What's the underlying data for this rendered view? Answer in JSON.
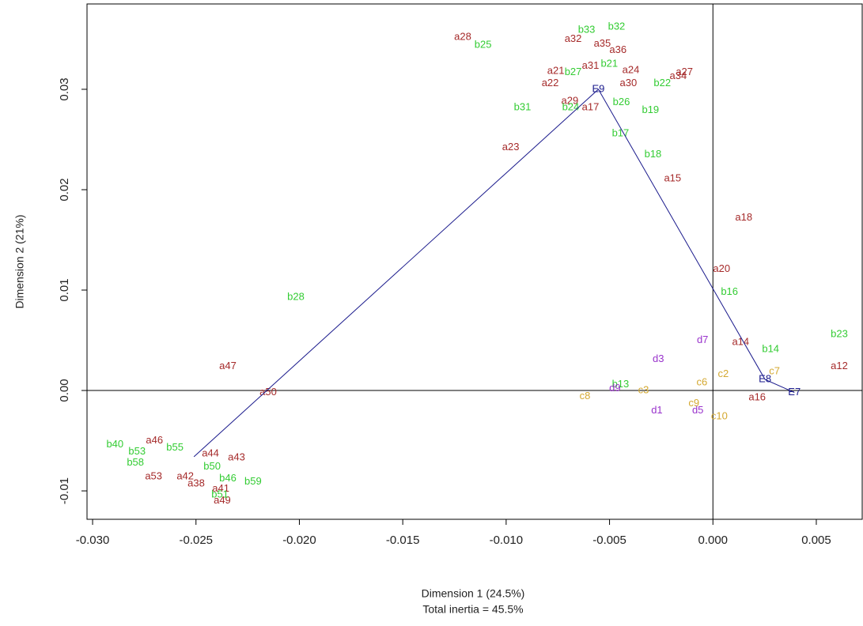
{
  "chart_data": {
    "type": "scatter",
    "xlabel": "Dimension 1 (24.5%)",
    "subtitle": "Total inertia = 45.5%",
    "ylabel": "Dimension 2 (21%)",
    "xlim": [
      -0.03027,
      0.00722
    ],
    "ylim": [
      -0.01283,
      0.0385
    ],
    "xticks": [
      {
        "value": -0.03,
        "label": "-0.030"
      },
      -0.025,
      {
        "value": -0.02,
        "label": "-0.020"
      },
      -0.015,
      {
        "value": -0.01,
        "label": "-0.010"
      },
      -0.005,
      {
        "value": 0,
        "label": "0.000"
      },
      0.005
    ],
    "yticks": [
      -0.01,
      {
        "value": 0,
        "label": "0.00"
      },
      0.01,
      0.02,
      0.03
    ],
    "reference_lines": {
      "x": 0,
      "y": 0
    },
    "series": [
      {
        "color": "#a52a2a",
        "line": false,
        "labels": [
          "a28",
          "a32",
          "a35",
          "a36",
          "a21",
          "a22",
          "a31",
          "a24",
          "a30",
          "a27",
          "a34",
          "a29",
          "a17",
          "a23",
          "a15",
          "a18",
          "a20",
          "a14",
          "a12",
          "a47",
          "a50",
          "a46",
          "a44",
          "a43",
          "a53",
          "a42",
          "a38",
          "a41",
          "a49",
          "a16"
        ],
        "x": [
          -0.0121,
          -0.00676,
          -0.00535,
          -0.00459,
          -0.0076,
          -0.00787,
          -0.00592,
          -0.00397,
          -0.00409,
          -0.00138,
          -0.00168,
          -0.00692,
          -0.00592,
          -0.00978,
          -0.00195,
          0.00149,
          0.00042,
          0.00134,
          0.00611,
          -0.02346,
          -0.02151,
          -0.02701,
          -0.0243,
          -0.02304,
          -0.02705,
          -0.02552,
          -0.02499,
          -0.0238,
          -0.02373,
          0.00214
        ],
        "y": [
          0.0352,
          0.035,
          0.0345,
          0.0339,
          0.0318,
          0.0306,
          0.0323,
          0.0319,
          0.0306,
          0.0317,
          0.0313,
          0.0288,
          0.0282,
          0.0242,
          0.0211,
          0.0172,
          0.0121,
          0.0048,
          0.0024,
          0.0024,
          -0.0002,
          -0.005,
          -0.0063,
          -0.0067,
          -0.0086,
          -0.0086,
          -0.0093,
          -0.0098,
          -0.011,
          -0.0007
        ]
      },
      {
        "color": "#33cc33",
        "line": false,
        "labels": [
          "b33",
          "b32",
          "b25",
          "b21",
          "b27",
          "b22",
          "b31",
          "b24",
          "b26",
          "b19",
          "b17",
          "b18",
          "b28",
          "b16",
          "b23",
          "b14",
          "b13",
          "b40",
          "b53",
          "b55",
          "b58",
          "b50",
          "b46",
          "b59",
          "b51"
        ],
        "x": [
          -0.00611,
          -0.00466,
          -0.01112,
          -0.00501,
          -0.00676,
          -0.00245,
          -0.00921,
          -0.00688,
          -0.00443,
          -0.00302,
          -0.00447,
          -0.0029,
          -0.02017,
          0.0008,
          0.00611,
          0.00279,
          -0.00447,
          -0.02892,
          -0.02785,
          -0.02602,
          -0.02793,
          -0.02422,
          -0.02346,
          -0.02224,
          -0.02384
        ],
        "y": [
          0.0359,
          0.0362,
          0.0344,
          0.0325,
          0.0317,
          0.0306,
          0.0282,
          0.0282,
          0.0287,
          0.0279,
          0.0256,
          0.0235,
          0.0093,
          0.0098,
          0.0056,
          0.0041,
          0.0006,
          -0.0054,
          -0.0061,
          -0.0057,
          -0.0072,
          -0.0076,
          -0.0088,
          -0.0091,
          -0.0104
        ]
      },
      {
        "color": "#d4a830",
        "line": false,
        "labels": [
          "c8",
          "c3",
          "c6",
          "c7",
          "c9",
          "c10",
          "c2"
        ],
        "x": [
          -0.00619,
          -0.00336,
          -0.00053,
          0.00298,
          -0.00092,
          0.00031,
          0.0005
        ],
        "y": [
          -0.0006,
          0.0,
          0.0008,
          0.0019,
          -0.0013,
          -0.0026,
          0.0016
        ]
      },
      {
        "color": "#9933cc",
        "line": false,
        "labels": [
          "d7",
          "d3",
          "d9",
          "d1",
          "d5"
        ],
        "x": [
          -0.0005,
          -0.00264,
          -0.00474,
          -0.00271,
          -0.00073
        ],
        "y": [
          0.005,
          0.0031,
          0.0002,
          -0.002,
          -0.002
        ]
      },
      {
        "color": "#1a1a8c",
        "line": true,
        "labels": [
          null,
          "E9",
          "E8",
          "E7"
        ],
        "x": [
          -0.0251,
          -0.00554,
          0.00252,
          0.00394
        ],
        "y": [
          -0.0066,
          0.03,
          0.0011,
          -0.0002
        ]
      }
    ]
  }
}
